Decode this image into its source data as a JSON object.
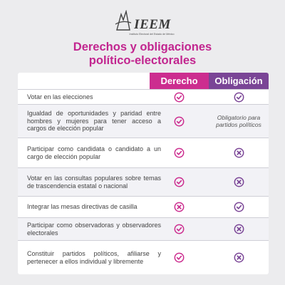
{
  "logo": {
    "name": "IEEM",
    "subtitle": "Instituto Electoral del Estado de México"
  },
  "title": {
    "line1": "Derechos y obligaciones",
    "line2": "político-electorales"
  },
  "columns": {
    "derecho": "Derecho",
    "obligacion": "Obligación"
  },
  "colors": {
    "magenta": "#cc2d8f",
    "purple": "#7a4596",
    "background": "#ececee"
  },
  "rows": [
    {
      "text": "Votar en las elecciones",
      "derecho": "check-icon",
      "obligacion": "check-icon"
    },
    {
      "text": "Igualdad de oportunidades y paridad entre hombres y mujeres para tener acceso a cargos de elección popular",
      "derecho": "check-icon",
      "obligacion_note": "Obligatorio para partidos políticos"
    },
    {
      "text": "Participar como candidata o candidato a un cargo de elección popular",
      "derecho": "check-icon",
      "obligacion": "cross-icon"
    },
    {
      "text": "Votar en las consultas populares sobre temas de trascendencia estatal o nacional",
      "derecho": "check-icon",
      "obligacion": "cross-icon"
    },
    {
      "text": "Integrar las mesas directivas de casilla",
      "derecho": "cross-icon",
      "obligacion": "check-icon"
    },
    {
      "text": "Participar como observadoras y observadores electorales",
      "derecho": "check-icon",
      "obligacion": "cross-icon"
    },
    {
      "text": "Constituir partidos políticos, afiliarse y pertenecer a ellos individual y libremente",
      "derecho": "check-icon",
      "obligacion": "cross-icon"
    }
  ]
}
